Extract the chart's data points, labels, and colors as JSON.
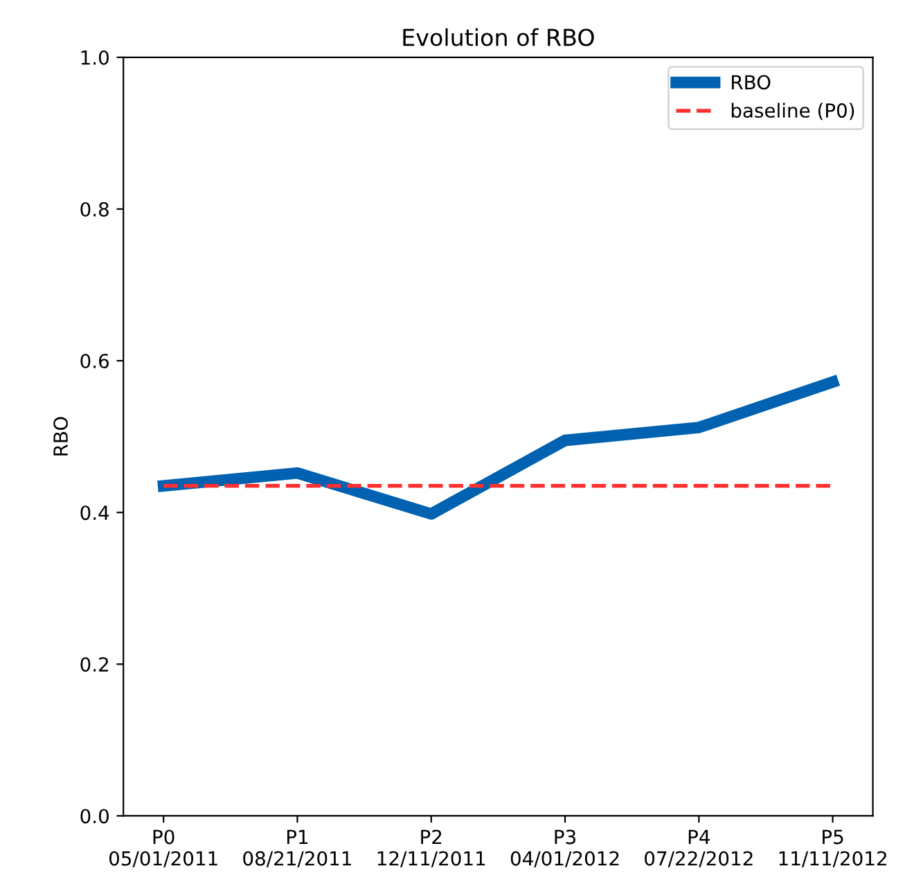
{
  "chart_data": {
    "type": "line",
    "title": "Evolution of RBO",
    "ylabel": "RBO",
    "categories": [
      "P0\n05/01/2011",
      "P1\n08/21/2011",
      "P2\n12/11/2011",
      "P3\n04/01/2012",
      "P4\n07/22/2012",
      "P5\n11/11/2012"
    ],
    "series": [
      {
        "name": "RBO",
        "color": "#0062b0",
        "values": [
          0.435,
          0.452,
          0.398,
          0.495,
          0.512,
          0.572
        ],
        "line_style": "solid"
      },
      {
        "name": "baseline (P0)",
        "color": "#ff3030",
        "values": [
          0.435,
          0.435,
          0.435,
          0.435,
          0.435,
          0.435
        ],
        "line_style": "dashed"
      }
    ],
    "ylim": [
      0,
      1
    ],
    "yticks": [
      {
        "value": 0,
        "label": "0.0"
      },
      0.2,
      0.4,
      0.6,
      0.8,
      {
        "value": 1,
        "label": "1.0"
      }
    ],
    "legend": "top right",
    "grid": false
  }
}
